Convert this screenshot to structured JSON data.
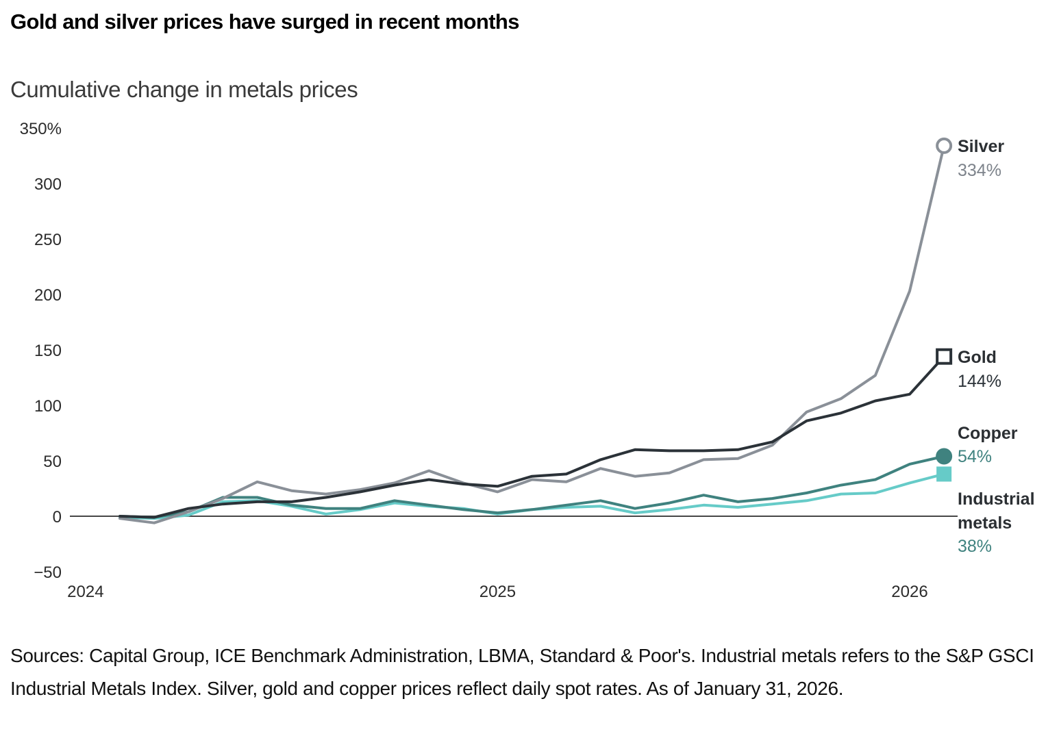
{
  "header": {
    "title": "Gold and silver prices have surged in recent months",
    "subtitle": "Cumulative change in metals prices"
  },
  "footnote": "Sources: Capital Group, ICE Benchmark Administration, LBMA, Standard & Poor's. Industrial metals refers to the S&P GSCI Industrial Metals Index. Silver, gold and copper prices reflect daily spot rates. As of January 31, 2026.",
  "chart_data": {
    "type": "line",
    "title": "Gold and silver prices have surged in recent months",
    "subtitle": "Cumulative change in metals prices",
    "xlabel": "",
    "ylabel": "",
    "x": [
      "2024-01",
      "2024-02",
      "2024-03",
      "2024-04",
      "2024-05",
      "2024-06",
      "2024-07",
      "2024-08",
      "2024-09",
      "2024-10",
      "2024-11",
      "2024-12",
      "2025-01",
      "2025-02",
      "2025-03",
      "2025-04",
      "2025-05",
      "2025-06",
      "2025-07",
      "2025-08",
      "2025-09",
      "2025-10",
      "2025-11",
      "2025-12",
      "2026-01"
    ],
    "x_ticks": [
      {
        "label": "2024",
        "month_index": -1
      },
      {
        "label": "2025",
        "month_index": 11
      },
      {
        "label": "2026",
        "month_index": 23
      }
    ],
    "y_ticks": [
      {
        "value": 350,
        "label": "350%"
      },
      {
        "value": 300,
        "label": "300"
      },
      {
        "value": 250,
        "label": "250"
      },
      {
        "value": 200,
        "label": "200"
      },
      {
        "value": 150,
        "label": "150"
      },
      {
        "value": 100,
        "label": "100"
      },
      {
        "value": 50,
        "label": "50"
      },
      {
        "value": 0,
        "label": "0"
      },
      {
        "value": -50,
        "label": "−50"
      }
    ],
    "ylim": [
      -50,
      350
    ],
    "grid": false,
    "zero_line": true,
    "legend": "direct labels at line ends (right)",
    "series": [
      {
        "name": "Silver",
        "end_label": "334%",
        "color": "#8a9098",
        "label_value_color": "#7d838b",
        "marker": "hollow-circle",
        "values": [
          -2,
          -6,
          4,
          16,
          31,
          23,
          20,
          24,
          30,
          41,
          30,
          22,
          33,
          31,
          43,
          36,
          39,
          51,
          52,
          64,
          94,
          106,
          127,
          203,
          334
        ]
      },
      {
        "name": "Gold",
        "end_label": "144%",
        "color": "#2b3238",
        "label_value_color": "#2b3238",
        "marker": "hollow-square",
        "values": [
          0,
          -1,
          7,
          11,
          13,
          13,
          17,
          22,
          28,
          33,
          29,
          27,
          36,
          38,
          51,
          60,
          59,
          59,
          60,
          67,
          86,
          93,
          104,
          110,
          144
        ]
      },
      {
        "name": "Copper",
        "end_label": "54%",
        "color": "#3f827f",
        "label_value_color": "#3f827f",
        "marker": "filled-circle",
        "values": [
          0,
          -1,
          4,
          17,
          17,
          10,
          7,
          7,
          14,
          10,
          6,
          3,
          6,
          10,
          14,
          7,
          12,
          19,
          13,
          16,
          21,
          28,
          33,
          47,
          54
        ]
      },
      {
        "name": "Industrial metals",
        "name_lines": [
          "Industrial",
          "metals"
        ],
        "end_label": "38%",
        "color": "#66cbc8",
        "label_value_color": "#3f827f",
        "marker": "filled-square",
        "values": [
          -1,
          -2,
          1,
          13,
          14,
          9,
          2,
          6,
          12,
          9,
          7,
          2,
          6,
          8,
          9,
          3,
          6,
          10,
          8,
          11,
          14,
          20,
          21,
          30,
          38
        ]
      }
    ]
  }
}
